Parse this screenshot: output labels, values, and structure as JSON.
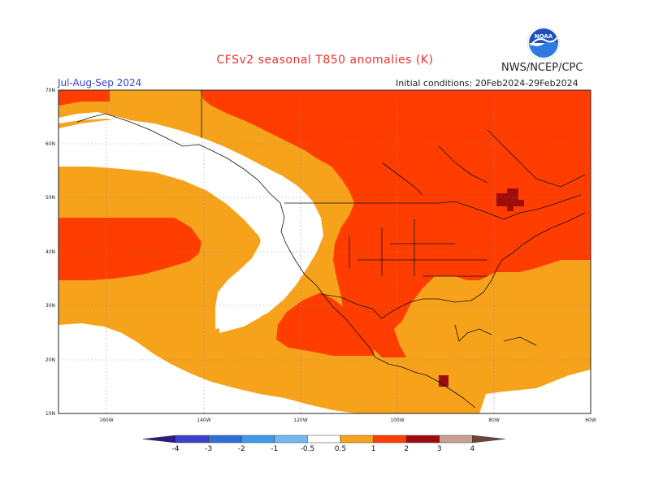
{
  "title": "CFSv2 seasonal T850 anomalies (K)",
  "organization": "NWS/NCEP/CPC",
  "season": "Jul-Aug-Sep 2024",
  "initial_conditions": "Initial conditions: 20Feb2024-29Feb2024",
  "logo_text": "NOAA",
  "lat_labels": [
    "70N",
    "60N",
    "50N",
    "40N",
    "30N",
    "20N",
    "10N"
  ],
  "lon_labels": [
    "160W",
    "140W",
    "120W",
    "100W",
    "80W",
    "60W"
  ],
  "colorbar": {
    "labels": [
      "-4",
      "-3",
      "-2",
      "-1",
      "-0.5",
      "0.5",
      "1",
      "2",
      "3",
      "4"
    ],
    "colors": [
      "#2a1a8c",
      "#3a3fcc",
      "#2e6fd8",
      "#3e9ae8",
      "#74b8f0",
      "#ffffff",
      "#f7a21b",
      "#ff3d00",
      "#a00b0b",
      "#c8a090",
      "#6e4434"
    ]
  },
  "legend_colors": {
    "ocean_white": "#ffffff",
    "anomaly_0_5_1": "#f7a21b",
    "anomaly_1_2": "#ff3d00",
    "anomaly_2_3": "#a00b0b"
  }
}
